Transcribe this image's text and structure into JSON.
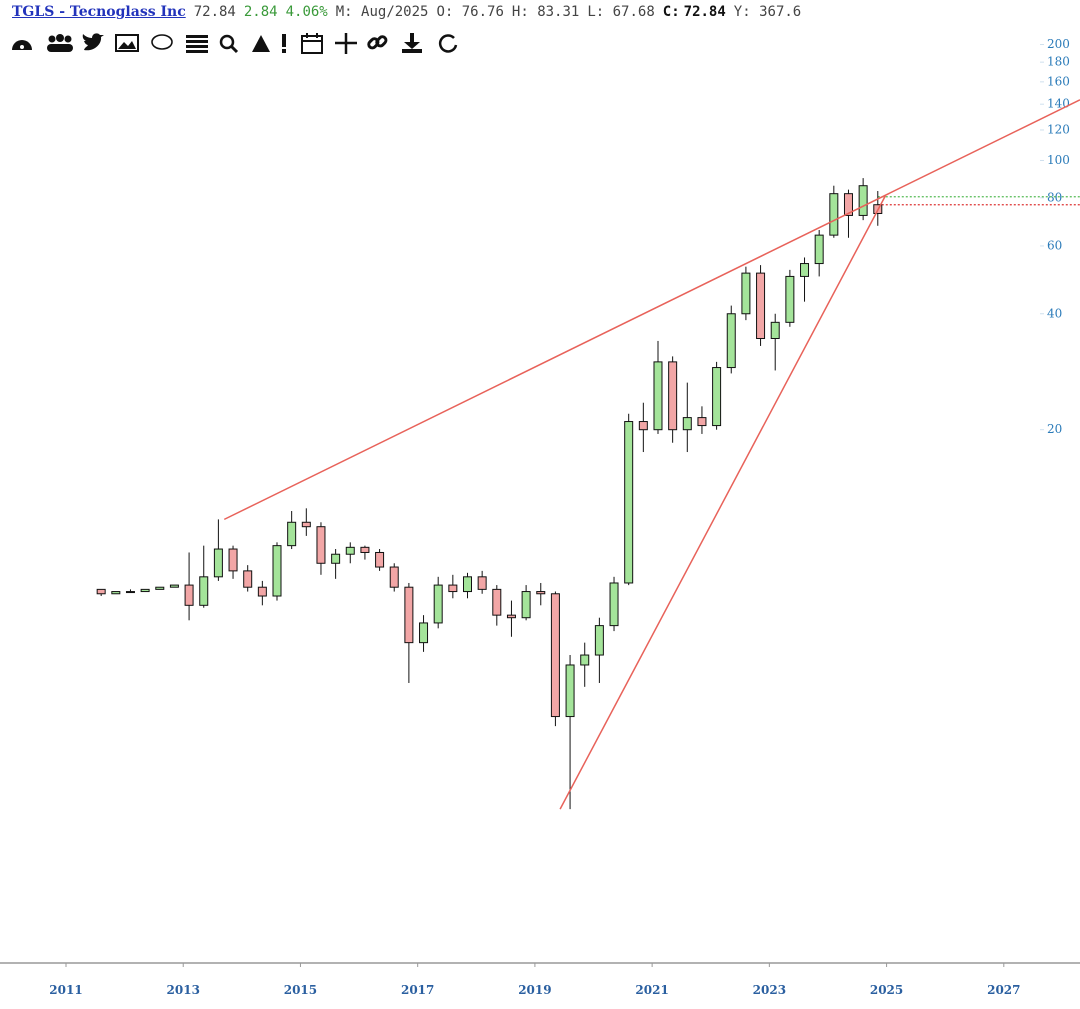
{
  "header": {
    "ticker": "TGLS - Tecnoglass Inc",
    "last": "72.84",
    "change": "2.84",
    "change_pct": "4.06%",
    "period": "M: Aug/2025",
    "open": "O: 76.76",
    "high": "H: 83.31",
    "low": "L: 67.68",
    "close_label": "C:",
    "close": "72.84",
    "y_label": "Y: 367.6"
  },
  "chart_data": {
    "type": "candlestick",
    "log_scale": true,
    "xlim": [
      2009.874,
      2028.3
    ],
    "xticks": [
      2011,
      2013,
      2015,
      2017,
      2019,
      2021,
      2023,
      2025,
      2027
    ],
    "ylim": [
      0.825,
      261
    ],
    "yticks": [
      200,
      180,
      160,
      140,
      120,
      100,
      80,
      60,
      40,
      20
    ],
    "up_color": "#a4e49a",
    "down_color": "#f2a6a6",
    "outline_color": "#111111",
    "x": [
      2011.6,
      2011.85,
      2012.1,
      2012.35,
      2012.6,
      2012.85,
      2013.1,
      2013.35,
      2013.6,
      2013.85,
      2014.1,
      2014.35,
      2014.6,
      2014.85,
      2015.1,
      2015.35,
      2015.6,
      2015.85,
      2016.1,
      2016.35,
      2016.6,
      2016.85,
      2017.1,
      2017.35,
      2017.6,
      2017.85,
      2018.1,
      2018.35,
      2018.6,
      2018.85,
      2019.1,
      2019.35,
      2019.6,
      2019.85,
      2020.1,
      2020.35,
      2020.6,
      2020.85,
      2021.1,
      2021.35,
      2021.6,
      2021.85,
      2022.1,
      2022.35,
      2022.6,
      2022.85,
      2023.1,
      2023.35,
      2023.6,
      2023.85,
      2024.1,
      2024.35,
      2024.6,
      2024.85
    ],
    "open": [
      7.7,
      7.5,
      7.6,
      7.6,
      7.7,
      7.8,
      7.9,
      7.0,
      8.3,
      9.8,
      8.6,
      7.8,
      7.4,
      10.0,
      11.5,
      11.2,
      9.0,
      9.5,
      9.9,
      9.6,
      8.8,
      7.8,
      5.6,
      6.3,
      7.9,
      7.6,
      8.3,
      7.7,
      6.6,
      6.5,
      7.6,
      7.5,
      3.6,
      4.9,
      5.2,
      6.2,
      8.0,
      21.0,
      20.0,
      30.0,
      20.0,
      21.5,
      20.5,
      29.0,
      40.0,
      51.0,
      34.5,
      38.0,
      50.0,
      54.0,
      64.0,
      82.0,
      72.0,
      76.76
    ],
    "high": [
      7.7,
      7.6,
      7.7,
      7.7,
      7.8,
      7.9,
      9.6,
      10.0,
      11.7,
      10.0,
      8.9,
      8.1,
      10.2,
      12.3,
      12.5,
      11.5,
      9.8,
      10.2,
      10.0,
      9.8,
      9.0,
      8.0,
      6.6,
      8.3,
      8.4,
      8.5,
      8.6,
      7.9,
      7.2,
      7.9,
      8.0,
      7.6,
      5.2,
      5.6,
      6.5,
      8.3,
      22.0,
      23.5,
      34.0,
      31.0,
      26.5,
      23.0,
      30.0,
      42.0,
      53.0,
      53.5,
      40.0,
      52.0,
      56.0,
      66.0,
      86.0,
      84.0,
      90.0,
      83.31
    ],
    "low": [
      7.4,
      7.5,
      7.6,
      7.6,
      7.7,
      7.8,
      6.4,
      6.9,
      8.1,
      8.2,
      7.6,
      7.0,
      7.2,
      9.8,
      10.6,
      8.4,
      8.2,
      9.0,
      9.2,
      8.6,
      7.6,
      4.4,
      5.3,
      6.1,
      7.3,
      7.3,
      7.5,
      6.2,
      5.8,
      6.4,
      7.0,
      3.4,
      2.07,
      4.3,
      4.4,
      6.0,
      7.9,
      17.5,
      19.5,
      18.5,
      17.5,
      19.5,
      20.0,
      28.0,
      38.5,
      33.0,
      28.5,
      37.0,
      43.0,
      50.0,
      63.0,
      63.0,
      70.0,
      67.68
    ],
    "close": [
      7.5,
      7.6,
      7.6,
      7.7,
      7.8,
      7.9,
      7.0,
      8.3,
      9.8,
      8.6,
      7.8,
      7.4,
      10.0,
      11.5,
      11.2,
      9.0,
      9.5,
      9.9,
      9.6,
      8.8,
      7.8,
      5.6,
      6.3,
      7.9,
      7.6,
      8.3,
      7.7,
      6.6,
      6.5,
      7.6,
      7.5,
      3.6,
      4.9,
      5.2,
      6.2,
      8.0,
      21.0,
      20.0,
      30.0,
      20.0,
      21.5,
      20.5,
      29.0,
      40.0,
      51.0,
      34.5,
      38.0,
      50.0,
      54.0,
      64.0,
      82.0,
      72.0,
      86.0,
      72.84
    ],
    "trendlines": [
      {
        "color": "#e8625a",
        "x": [
          2013.7,
          2028.3
        ],
        "y": [
          11.7,
          143.7
        ]
      },
      {
        "color": "#e8625a",
        "x": [
          2019.43,
          2024.98
        ],
        "y": [
          2.07,
          81
        ]
      }
    ],
    "price_lines": [
      {
        "value": 80.5,
        "color": "#55bb55"
      },
      {
        "value": 76.76,
        "color": "#dd3333"
      }
    ]
  }
}
